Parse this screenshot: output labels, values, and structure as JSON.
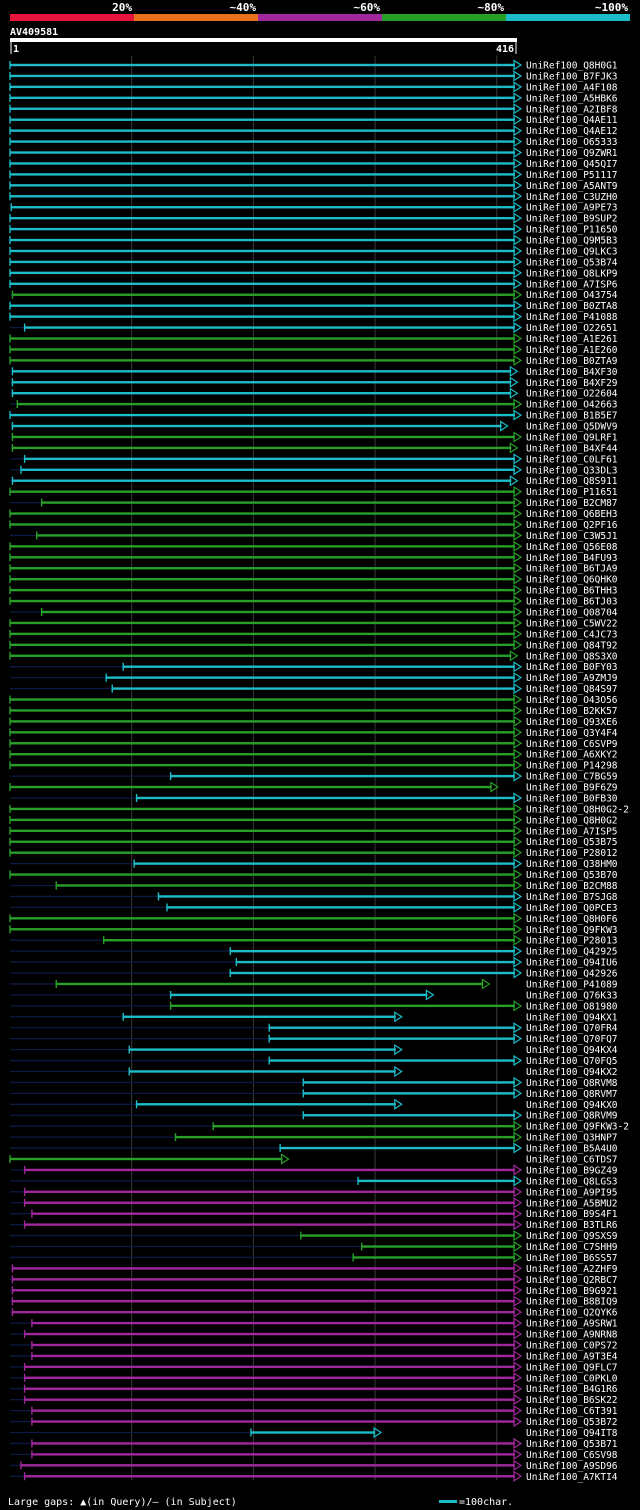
{
  "chart_data": {
    "type": "alignment-overview",
    "query_name": "AV409581",
    "query_length": 416,
    "ruler_start": "1",
    "ruler_end": "416",
    "identity_legend": [
      {
        "label": "20%",
        "color": "#e8143c"
      },
      {
        "label": "~40%",
        "color": "#e8731c"
      },
      {
        "label": "~60%",
        "color": "#a0279c"
      },
      {
        "label": "~80%",
        "color": "#28a028"
      },
      {
        "label": "~100%",
        "color": "#1cbcc8"
      }
    ],
    "colors": {
      "teal": "#1cbcc8",
      "green": "#28a028",
      "purple": "#a0279c",
      "background": "#000000",
      "axis": "#ffffff"
    },
    "footer": {
      "gaps_text": "Large gaps: ▲(in Query)/— (in Subject)",
      "scale_text": "=100char."
    },
    "hits": [
      {
        "name": "UniRef100_Q8H0G1",
        "start": 1,
        "end": 416,
        "color": "teal"
      },
      {
        "name": "UniRef100_B7FJK3",
        "start": 1,
        "end": 416,
        "color": "teal"
      },
      {
        "name": "UniRef100_A4F108",
        "start": 1,
        "end": 416,
        "color": "teal"
      },
      {
        "name": "UniRef100_A5HBK6",
        "start": 1,
        "end": 416,
        "color": "teal"
      },
      {
        "name": "UniRef100_A2IBF8",
        "start": 1,
        "end": 416,
        "color": "teal"
      },
      {
        "name": "UniRef100_Q4AE11",
        "start": 1,
        "end": 416,
        "color": "teal"
      },
      {
        "name": "UniRef100_Q4AE12",
        "start": 1,
        "end": 416,
        "color": "teal"
      },
      {
        "name": "UniRef100_O65333",
        "start": 1,
        "end": 416,
        "color": "teal"
      },
      {
        "name": "UniRef100_Q9ZWR1",
        "start": 1,
        "end": 416,
        "color": "teal"
      },
      {
        "name": "UniRef100_Q45QI7",
        "start": 1,
        "end": 416,
        "color": "teal"
      },
      {
        "name": "UniRef100_P51117",
        "start": 1,
        "end": 416,
        "color": "teal"
      },
      {
        "name": "UniRef100_A5ANT9",
        "start": 1,
        "end": 416,
        "color": "teal"
      },
      {
        "name": "UniRef100_C3UZH0",
        "start": 1,
        "end": 416,
        "color": "teal"
      },
      {
        "name": "UniRef100_A9PE73",
        "start": 2,
        "end": 416,
        "color": "teal"
      },
      {
        "name": "UniRef100_B9SUP2",
        "start": 1,
        "end": 416,
        "color": "teal"
      },
      {
        "name": "UniRef100_P11650",
        "start": 1,
        "end": 416,
        "color": "teal"
      },
      {
        "name": "UniRef100_Q9M5B3",
        "start": 1,
        "end": 416,
        "color": "teal"
      },
      {
        "name": "UniRef100_Q9LKC3",
        "start": 1,
        "end": 416,
        "color": "teal"
      },
      {
        "name": "UniRef100_Q53B74",
        "start": 1,
        "end": 416,
        "color": "teal"
      },
      {
        "name": "UniRef100_Q8LKP9",
        "start": 1,
        "end": 416,
        "color": "teal"
      },
      {
        "name": "UniRef100_A7ISP6",
        "start": 1,
        "end": 416,
        "color": "teal"
      },
      {
        "name": "UniRef100_O43754",
        "start": 3,
        "end": 416,
        "color": "green"
      },
      {
        "name": "UniRef100_B0ZTA8",
        "start": 1,
        "end": 416,
        "color": "teal"
      },
      {
        "name": "UniRef100_P41088",
        "start": 1,
        "end": 416,
        "color": "teal"
      },
      {
        "name": "UniRef100_O22651",
        "start": 13,
        "end": 416,
        "color": "teal"
      },
      {
        "name": "UniRef100_A1E261",
        "start": 1,
        "end": 416,
        "color": "green"
      },
      {
        "name": "UniRef100_A1E260",
        "start": 1,
        "end": 416,
        "color": "green"
      },
      {
        "name": "UniRef100_B0ZTA9",
        "start": 1,
        "end": 416,
        "color": "green"
      },
      {
        "name": "UniRef100_B4XF30",
        "start": 3,
        "end": 413,
        "color": "teal"
      },
      {
        "name": "UniRef100_B4XF29",
        "start": 3,
        "end": 413,
        "color": "teal"
      },
      {
        "name": "UniRef100_O22604",
        "start": 3,
        "end": 413,
        "color": "teal"
      },
      {
        "name": "UniRef100_O42663",
        "start": 7,
        "end": 416,
        "color": "green"
      },
      {
        "name": "UniRef100_B1B5E7",
        "start": 1,
        "end": 416,
        "color": "teal"
      },
      {
        "name": "UniRef100_Q5DWV9",
        "start": 3,
        "end": 405,
        "color": "teal"
      },
      {
        "name": "UniRef100_Q9LRF1",
        "start": 3,
        "end": 416,
        "color": "green"
      },
      {
        "name": "UniRef100_B4XF44",
        "start": 3,
        "end": 413,
        "color": "green"
      },
      {
        "name": "UniRef100_C0LF61",
        "start": 13,
        "end": 416,
        "color": "teal"
      },
      {
        "name": "UniRef100_Q33DL3",
        "start": 10,
        "end": 416,
        "color": "teal"
      },
      {
        "name": "UniRef100_Q8S911",
        "start": 3,
        "end": 413,
        "color": "teal"
      },
      {
        "name": "UniRef100_P11651",
        "start": 1,
        "end": 416,
        "color": "green"
      },
      {
        "name": "UniRef100_B2CM87",
        "start": 27,
        "end": 416,
        "color": "green"
      },
      {
        "name": "UniRef100_Q6BEH3",
        "start": 1,
        "end": 416,
        "color": "green"
      },
      {
        "name": "UniRef100_Q2PF16",
        "start": 1,
        "end": 416,
        "color": "green"
      },
      {
        "name": "UniRef100_C3W5J1",
        "start": 23,
        "end": 416,
        "color": "green"
      },
      {
        "name": "UniRef100_Q56E08",
        "start": 1,
        "end": 416,
        "color": "green"
      },
      {
        "name": "UniRef100_B4FU93",
        "start": 1,
        "end": 416,
        "color": "green"
      },
      {
        "name": "UniRef100_B6TJA9",
        "start": 1,
        "end": 416,
        "color": "green"
      },
      {
        "name": "UniRef100_Q6QHK0",
        "start": 1,
        "end": 416,
        "color": "green"
      },
      {
        "name": "UniRef100_B6THH3",
        "start": 1,
        "end": 416,
        "color": "green"
      },
      {
        "name": "UniRef100_B6TJ03",
        "start": 1,
        "end": 416,
        "color": "green"
      },
      {
        "name": "UniRef100_Q08704",
        "start": 27,
        "end": 416,
        "color": "green"
      },
      {
        "name": "UniRef100_C5WV22",
        "start": 1,
        "end": 416,
        "color": "green"
      },
      {
        "name": "UniRef100_C4JC73",
        "start": 1,
        "end": 416,
        "color": "green"
      },
      {
        "name": "UniRef100_Q84T92",
        "start": 1,
        "end": 416,
        "color": "green"
      },
      {
        "name": "UniRef100_Q8S3X0",
        "start": 1,
        "end": 413,
        "color": "green"
      },
      {
        "name": "UniRef100_B0FY03",
        "start": 94,
        "end": 416,
        "color": "teal"
      },
      {
        "name": "UniRef100_A9ZMJ9",
        "start": 80,
        "end": 416,
        "color": "teal"
      },
      {
        "name": "UniRef100_Q84S97",
        "start": 85,
        "end": 416,
        "color": "teal"
      },
      {
        "name": "UniRef100_O43O56",
        "start": 1,
        "end": 416,
        "color": "green"
      },
      {
        "name": "UniRef100_B2KK57",
        "start": 1,
        "end": 416,
        "color": "green"
      },
      {
        "name": "UniRef100_Q93XE6",
        "start": 1,
        "end": 416,
        "color": "green"
      },
      {
        "name": "UniRef100_Q3Y4F4",
        "start": 1,
        "end": 416,
        "color": "green"
      },
      {
        "name": "UniRef100_C6SVP9",
        "start": 1,
        "end": 416,
        "color": "green"
      },
      {
        "name": "UniRef100_A6XKY2",
        "start": 1,
        "end": 416,
        "color": "green"
      },
      {
        "name": "UniRef100_P14298",
        "start": 1,
        "end": 416,
        "color": "green"
      },
      {
        "name": "UniRef100_C7BG59",
        "start": 133,
        "end": 416,
        "color": "teal"
      },
      {
        "name": "UniRef100_B9F6Z9",
        "start": 1,
        "end": 397,
        "color": "green"
      },
      {
        "name": "UniRef100_B0FB30",
        "start": 105,
        "end": 416,
        "color": "teal"
      },
      {
        "name": "UniRef100_Q8H0G2-2",
        "start": 1,
        "end": 416,
        "color": "green"
      },
      {
        "name": "UniRef100_Q8H0G2",
        "start": 1,
        "end": 416,
        "color": "green"
      },
      {
        "name": "UniRef100_A7ISP5",
        "start": 1,
        "end": 416,
        "color": "green"
      },
      {
        "name": "UniRef100_Q53B75",
        "start": 1,
        "end": 416,
        "color": "green"
      },
      {
        "name": "UniRef100_P28012",
        "start": 1,
        "end": 416,
        "color": "green"
      },
      {
        "name": "UniRef100_Q38HM0",
        "start": 103,
        "end": 416,
        "color": "teal"
      },
      {
        "name": "UniRef100_Q53B70",
        "start": 1,
        "end": 416,
        "color": "green"
      },
      {
        "name": "UniRef100_B2CM88",
        "start": 39,
        "end": 416,
        "color": "green"
      },
      {
        "name": "UniRef100_B7SJG8",
        "start": 123,
        "end": 416,
        "color": "teal"
      },
      {
        "name": "UniRef100_Q0PCE3",
        "start": 130,
        "end": 416,
        "color": "teal"
      },
      {
        "name": "UniRef100_Q8H0F6",
        "start": 1,
        "end": 416,
        "color": "green"
      },
      {
        "name": "UniRef100_Q9FKW3",
        "start": 1,
        "end": 416,
        "color": "green"
      },
      {
        "name": "UniRef100_P28013",
        "start": 78,
        "end": 416,
        "color": "green"
      },
      {
        "name": "UniRef100_Q42925",
        "start": 182,
        "end": 416,
        "color": "teal"
      },
      {
        "name": "UniRef100_Q94IU6",
        "start": 187,
        "end": 416,
        "color": "teal"
      },
      {
        "name": "UniRef100_Q42926",
        "start": 182,
        "end": 416,
        "color": "teal"
      },
      {
        "name": "UniRef100_P41089",
        "start": 39,
        "end": 390,
        "color": "green"
      },
      {
        "name": "UniRef100_Q76K33",
        "start": 133,
        "end": 344,
        "color": "teal"
      },
      {
        "name": "UniRef100_O81980",
        "start": 133,
        "end": 416,
        "color": "green"
      },
      {
        "name": "UniRef100_Q94KX1",
        "start": 94,
        "end": 318,
        "color": "teal"
      },
      {
        "name": "UniRef100_Q70FR4",
        "start": 214,
        "end": 416,
        "color": "teal"
      },
      {
        "name": "UniRef100_Q70FQ7",
        "start": 214,
        "end": 416,
        "color": "teal"
      },
      {
        "name": "UniRef100_Q94KX4",
        "start": 99,
        "end": 318,
        "color": "teal"
      },
      {
        "name": "UniRef100_Q70FQ5",
        "start": 214,
        "end": 416,
        "color": "teal"
      },
      {
        "name": "UniRef100_Q94KX2",
        "start": 99,
        "end": 318,
        "color": "teal"
      },
      {
        "name": "UniRef100_Q8RVM8",
        "start": 242,
        "end": 416,
        "color": "teal"
      },
      {
        "name": "UniRef100_Q8RVM7",
        "start": 242,
        "end": 416,
        "color": "teal"
      },
      {
        "name": "UniRef100_Q94KX0",
        "start": 105,
        "end": 318,
        "color": "teal"
      },
      {
        "name": "UniRef100_Q8RVM9",
        "start": 242,
        "end": 416,
        "color": "teal"
      },
      {
        "name": "UniRef100_Q9FKW3-2",
        "start": 168,
        "end": 416,
        "color": "green"
      },
      {
        "name": "UniRef100_Q3HNP7",
        "start": 137,
        "end": 416,
        "color": "green"
      },
      {
        "name": "UniRef100_B5A4U0",
        "start": 223,
        "end": 416,
        "color": "teal"
      },
      {
        "name": "UniRef100_C6TDS7",
        "start": 1,
        "end": 225,
        "color": "green"
      },
      {
        "name": "UniRef100_B9GZ49",
        "start": 13,
        "end": 416,
        "color": "purple"
      },
      {
        "name": "UniRef100_Q8LGS3",
        "start": 287,
        "end": 416,
        "color": "teal"
      },
      {
        "name": "UniRef100_A9PI95",
        "start": 13,
        "end": 416,
        "color": "purple"
      },
      {
        "name": "UniRef100_A5BMU2",
        "start": 13,
        "end": 416,
        "color": "purple"
      },
      {
        "name": "UniRef100_B9S4F1",
        "start": 19,
        "end": 416,
        "color": "purple"
      },
      {
        "name": "UniRef100_B3TLR6",
        "start": 13,
        "end": 416,
        "color": "purple"
      },
      {
        "name": "UniRef100_Q9SXS9",
        "start": 240,
        "end": 416,
        "color": "green"
      },
      {
        "name": "UniRef100_C7SHH9",
        "start": 290,
        "end": 416,
        "color": "green"
      },
      {
        "name": "UniRef100_B6SS57",
        "start": 283,
        "end": 416,
        "color": "green"
      },
      {
        "name": "UniRef100_A2ZHF9",
        "start": 3,
        "end": 416,
        "color": "purple"
      },
      {
        "name": "UniRef100_Q2RBC7",
        "start": 3,
        "end": 416,
        "color": "purple"
      },
      {
        "name": "UniRef100_B9G921",
        "start": 3,
        "end": 416,
        "color": "purple"
      },
      {
        "name": "UniRef100_B8BIQ9",
        "start": 3,
        "end": 416,
        "color": "purple"
      },
      {
        "name": "UniRef100_Q2QYK6",
        "start": 3,
        "end": 416,
        "color": "purple"
      },
      {
        "name": "UniRef100_A9SRW1",
        "start": 19,
        "end": 416,
        "color": "purple"
      },
      {
        "name": "UniRef100_A9NRN8",
        "start": 13,
        "end": 416,
        "color": "purple"
      },
      {
        "name": "UniRef100_C0PS72",
        "start": 19,
        "end": 416,
        "color": "purple"
      },
      {
        "name": "UniRef100_A9T3E4",
        "start": 19,
        "end": 416,
        "color": "purple"
      },
      {
        "name": "UniRef100_Q9FLC7",
        "start": 13,
        "end": 416,
        "color": "purple"
      },
      {
        "name": "UniRef100_C0PKL0",
        "start": 13,
        "end": 416,
        "color": "purple"
      },
      {
        "name": "UniRef100_B4G1R6",
        "start": 13,
        "end": 416,
        "color": "purple"
      },
      {
        "name": "UniRef100_B6SK22",
        "start": 13,
        "end": 416,
        "color": "purple"
      },
      {
        "name": "UniRef100_C6T391",
        "start": 19,
        "end": 416,
        "color": "purple"
      },
      {
        "name": "UniRef100_Q53B72",
        "start": 19,
        "end": 416,
        "color": "purple"
      },
      {
        "name": "UniRef100_Q94IT8",
        "start": 199,
        "end": 301,
        "color": "teal"
      },
      {
        "name": "UniRef100_Q53B71",
        "start": 19,
        "end": 416,
        "color": "purple"
      },
      {
        "name": "UniRef100_C6SV98",
        "start": 19,
        "end": 416,
        "color": "purple"
      },
      {
        "name": "UniRef100_A9SD96",
        "start": 10,
        "end": 416,
        "color": "purple"
      },
      {
        "name": "UniRef100_A7KTI4",
        "start": 13,
        "end": 416,
        "color": "purple"
      }
    ]
  }
}
